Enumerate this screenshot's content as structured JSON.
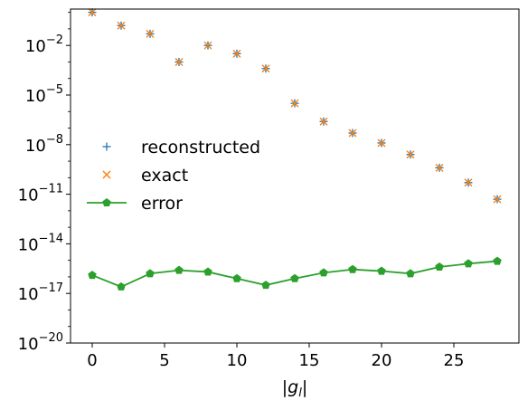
{
  "chart_data": {
    "type": "scatter",
    "xlabel": "|g_l|",
    "xlim": [
      -1.5,
      29.5
    ],
    "ylim_log10": [
      -20,
      0.2
    ],
    "yscale": "log",
    "grid": false,
    "legend_placement": "center-left",
    "x_ticks": [
      0,
      5,
      10,
      15,
      20,
      25
    ],
    "y_ticks_exponents": [
      -20,
      -17,
      -14,
      -11,
      -8,
      -5,
      -2
    ],
    "x": [
      0,
      2,
      4,
      6,
      8,
      10,
      12,
      14,
      16,
      18,
      20,
      22,
      24,
      26,
      28
    ],
    "series": [
      {
        "name": "reconstructed",
        "marker": "plus",
        "color": "#1f77b4",
        "y_log10": [
          0.0,
          -0.8,
          -1.3,
          -3.0,
          -2.0,
          -2.5,
          -3.4,
          -5.5,
          -6.6,
          -7.3,
          -7.9,
          -8.6,
          -9.4,
          -10.3,
          -11.3
        ]
      },
      {
        "name": "exact",
        "marker": "x",
        "color": "#ff7f0e",
        "y_log10": [
          0.0,
          -0.8,
          -1.3,
          -3.0,
          -2.0,
          -2.5,
          -3.4,
          -5.5,
          -6.6,
          -7.3,
          -7.9,
          -8.6,
          -9.4,
          -10.3,
          -11.3
        ]
      },
      {
        "name": "error",
        "marker": "pentagon",
        "line": true,
        "color": "#2ca02c",
        "y_log10": [
          -15.9,
          -16.6,
          -15.8,
          -15.6,
          -15.7,
          -16.1,
          -16.5,
          -16.1,
          -15.75,
          -15.55,
          -15.65,
          -15.8,
          -15.4,
          -15.2,
          -15.05
        ]
      }
    ]
  }
}
